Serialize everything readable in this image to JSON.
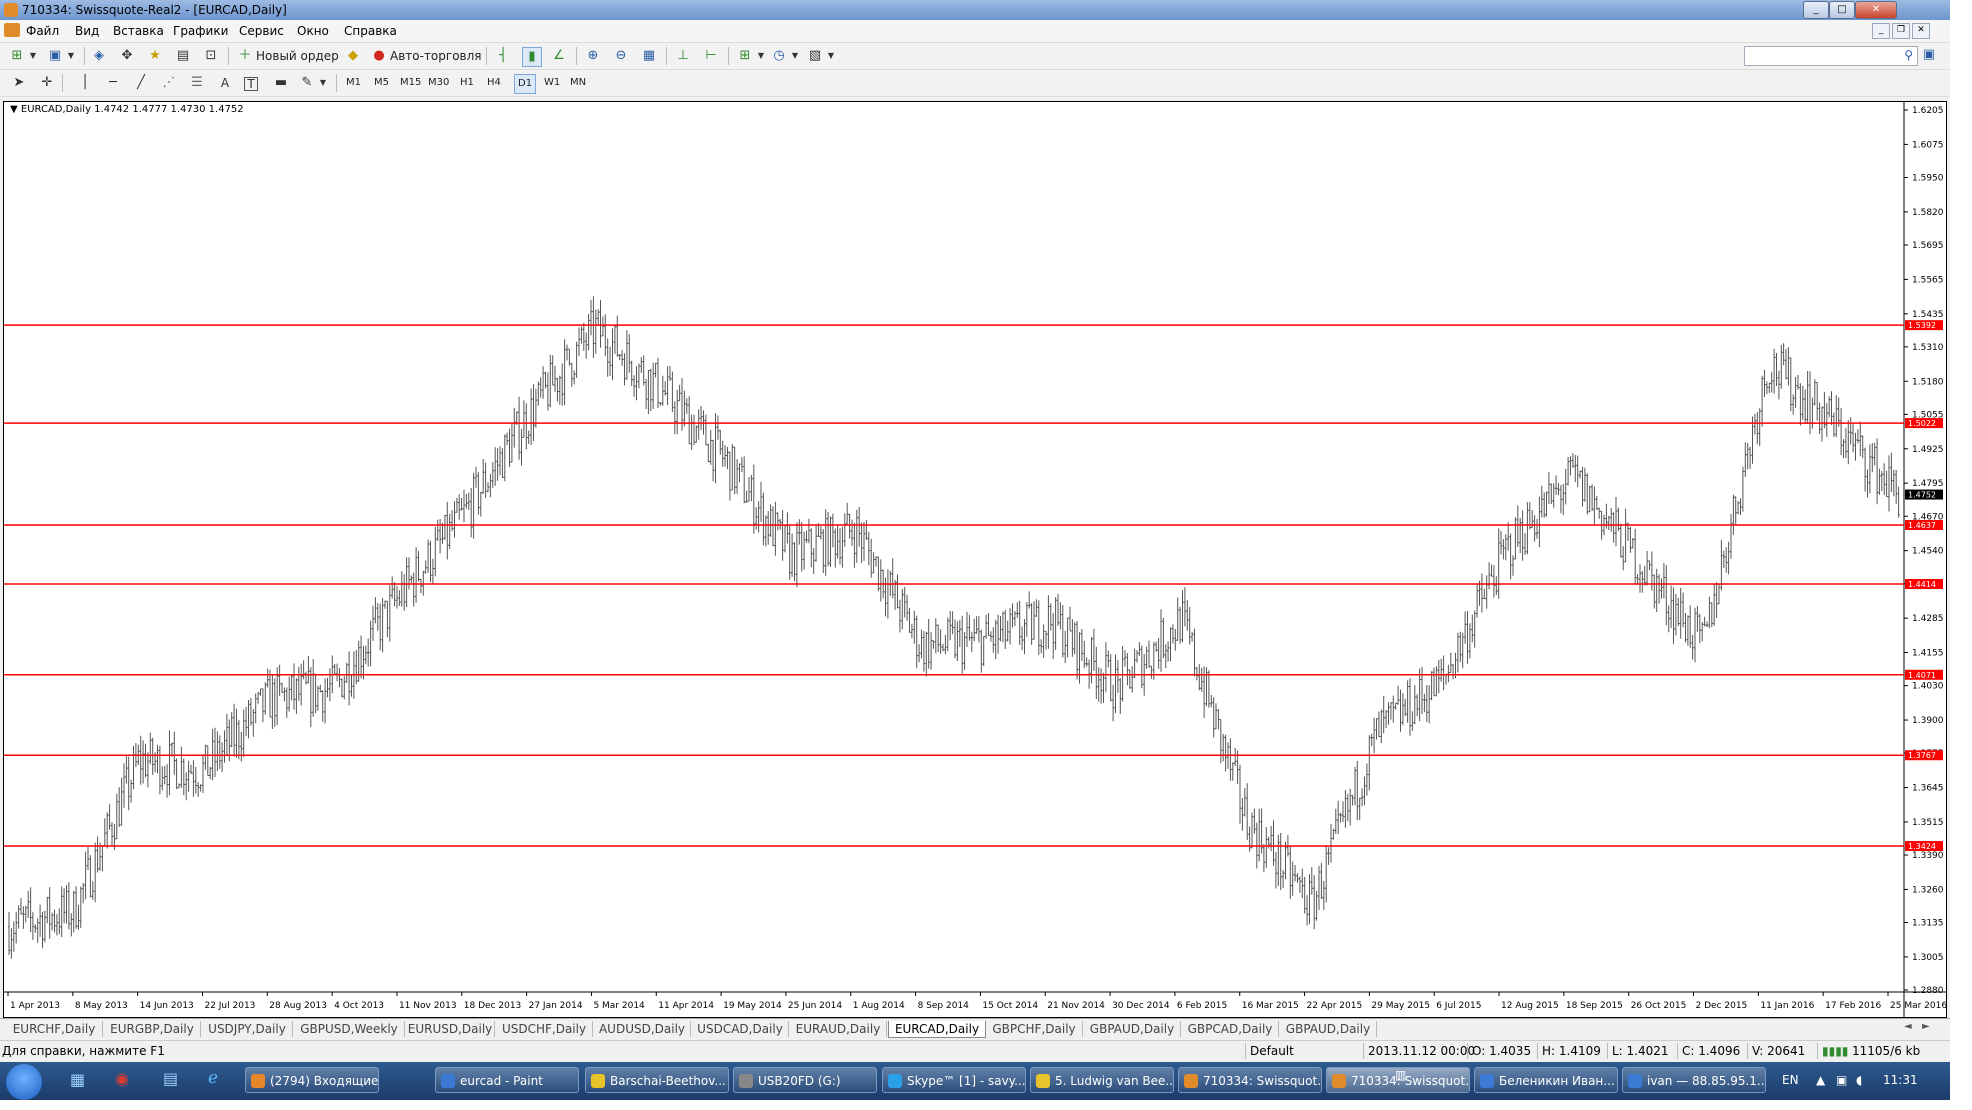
{
  "window": {
    "title": "710334: Swissquote-Real2 - [EURCAD,Daily]",
    "controls": [
      "_",
      "□",
      "✕"
    ]
  },
  "menu": [
    "Файл",
    "Вид",
    "Вставка",
    "Графики",
    "Сервис",
    "Окно",
    "Справка"
  ],
  "toolbar": {
    "new_order_label": "Новый ордер",
    "autotrade_label": "Авто-торговля",
    "timeframes": [
      "M1",
      "M5",
      "M15",
      "M30",
      "H1",
      "H4",
      "D1",
      "W1",
      "MN"
    ],
    "active_timeframe": "D1"
  },
  "chart": {
    "symbol_info": "EURCAD,Daily  1.4742 1.4777 1.4730 1.4752",
    "accent_color": "#ff0000",
    "background": "#ffffff"
  },
  "chart_data": {
    "type": "bar",
    "subtype": "ohlc",
    "title": "EURCAD,Daily",
    "ohlc_header": {
      "open": 1.4742,
      "high": 1.4777,
      "low": 1.473,
      "close": 1.4752
    },
    "current_price": 1.4752,
    "ylim": [
      1.288,
      1.6205
    ],
    "y_ticks": [
      1.6205,
      1.6075,
      1.595,
      1.582,
      1.5695,
      1.5565,
      1.5435,
      1.531,
      1.518,
      1.5055,
      1.4925,
      1.4795,
      1.467,
      1.454,
      1.4415,
      1.4285,
      1.4155,
      1.403,
      1.39,
      1.3775,
      1.3645,
      1.3515,
      1.339,
      1.326,
      1.3135,
      1.3005,
      1.288
    ],
    "x_labels": [
      "1 Apr 2013",
      "8 May 2013",
      "14 Jun 2013",
      "22 Jul 2013",
      "28 Aug 2013",
      "4 Oct 2013",
      "11 Nov 2013",
      "18 Dec 2013",
      "27 Jan 2014",
      "5 Mar 2014",
      "11 Apr 2014",
      "19 May 2014",
      "25 Jun 2014",
      "1 Aug 2014",
      "8 Sep 2014",
      "15 Oct 2014",
      "21 Nov 2014",
      "30 Dec 2014",
      "6 Feb 2015",
      "16 Mar 2015",
      "22 Apr 2015",
      "29 May 2015",
      "6 Jul 2015",
      "12 Aug 2015",
      "18 Sep 2015",
      "26 Oct 2015",
      "2 Dec 2015",
      "11 Jan 2016",
      "17 Feb 2016",
      "25 Mar 2016"
    ],
    "horizontal_levels": [
      1.5392,
      1.5022,
      1.4637,
      1.4414,
      1.4071,
      1.3767,
      1.3424
    ],
    "series": [
      {
        "x": [
          "1 Apr 2013",
          "8 May 2013",
          "14 Jun 2013",
          "22 Jul 2013",
          "28 Aug 2013",
          "4 Oct 2013",
          "11 Nov 2013",
          "18 Dec 2013",
          "27 Jan 2014",
          "5 Mar 2014",
          "11 Apr 2014",
          "19 May 2014",
          "25 Jun 2014",
          "1 Aug 2014",
          "8 Sep 2014",
          "15 Oct 2014",
          "21 Nov 2014",
          "30 Dec 2014",
          "6 Feb 2015",
          "16 Mar 2015",
          "22 Apr 2015",
          "29 May 2015",
          "6 Jul 2015",
          "12 Aug 2015",
          "18 Sep 2015",
          "26 Oct 2015",
          "2 Dec 2015",
          "11 Jan 2016",
          "17 Feb 2016",
          "25 Mar 2016"
        ],
        "values": [
          1.312,
          1.318,
          1.375,
          1.371,
          1.398,
          1.402,
          1.437,
          1.468,
          1.506,
          1.538,
          1.515,
          1.488,
          1.452,
          1.462,
          1.418,
          1.42,
          1.428,
          1.402,
          1.428,
          1.352,
          1.32,
          1.385,
          1.405,
          1.455,
          1.482,
          1.45,
          1.418,
          1.525,
          1.502,
          1.4752
        ]
      }
    ]
  },
  "tabs": [
    "EURCHF,Daily",
    "EURGBP,Daily",
    "USDJPY,Daily",
    "GBPUSD,Weekly",
    "EURUSD,Daily",
    "USDCHF,Daily",
    "AUDUSD,Daily",
    "USDCAD,Daily",
    "EURAUD,Daily",
    "EURCAD,Daily",
    "GBPCHF,Daily",
    "GBPAUD,Daily",
    "GBPCAD,Daily",
    "GBPAUD,Daily"
  ],
  "active_tab": "EURCAD,Daily",
  "status": {
    "help": "Для справки, нажмите F1",
    "profile": "Default",
    "datetime": "2013.11.12 00:00",
    "open": "O: 1.4035",
    "high": "H: 1.4109",
    "low": "L: 1.4021",
    "close": "C: 1.4096",
    "volume": "V: 20641",
    "traffic": "11105/6 kb"
  },
  "taskbar": {
    "items": [
      "(2794) Входящие ...",
      "eurcad - Paint",
      "Barschai-Beethov...",
      "USB20FD (G:)",
      "Skype™ [1] - savy...",
      "5. Ludwig van Bee...",
      "710334: Swissquot...",
      "710334: Swissquot...",
      "Беленикин Иван...",
      "ivan — 88.85.95.1..."
    ],
    "lang": "EN",
    "clock": "11:31"
  }
}
